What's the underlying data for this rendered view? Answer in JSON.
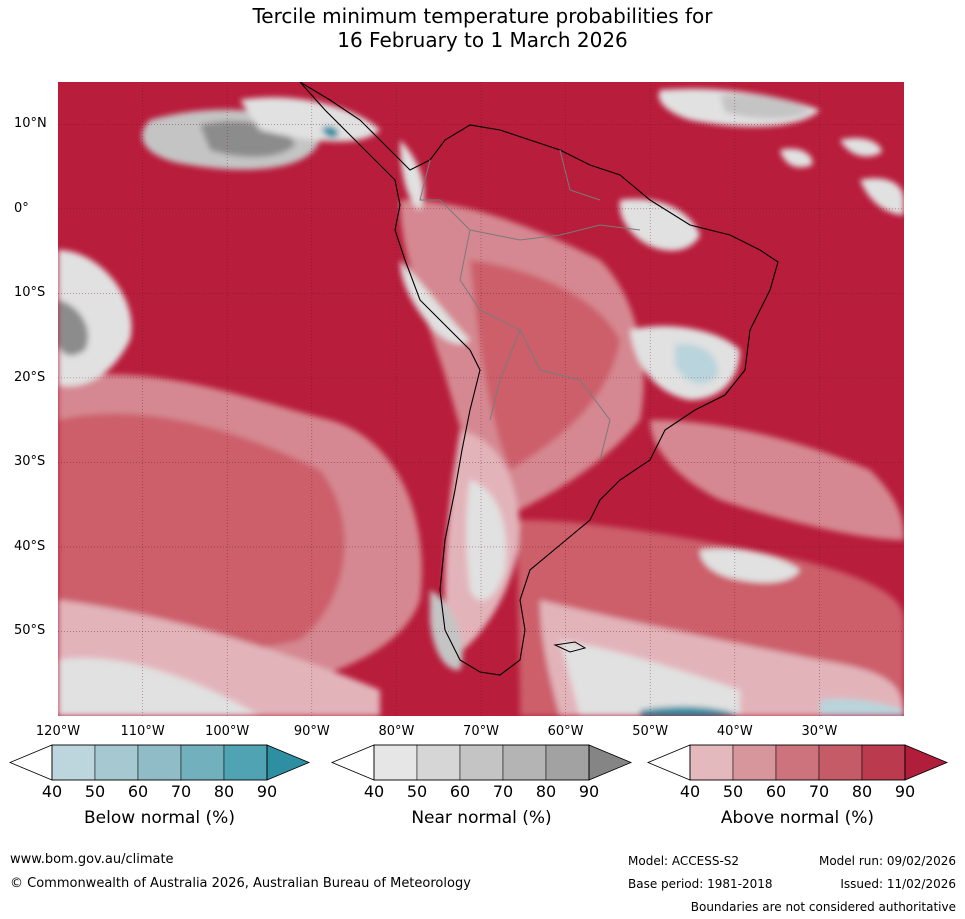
{
  "title": {
    "line1": "Tercile minimum temperature probabilities for",
    "line2": "16 February to 1 March 2026"
  },
  "map": {
    "lat_labels": [
      "10°N",
      "0°",
      "10°S",
      "20°S",
      "30°S",
      "40°S",
      "50°S"
    ],
    "lon_labels": [
      "120°W",
      "110°W",
      "100°W",
      "90°W",
      "80°W",
      "70°W",
      "60°W",
      "50°W",
      "40°W",
      "30°W"
    ],
    "colors": {
      "above_90": "#b81d3b",
      "above_80": "#c8384f",
      "above_70": "#cc5e6a",
      "above_60": "#d58891",
      "above_50": "#e2b4ba",
      "near_light": "#e1e1e1",
      "near_mid": "#c4c4c4",
      "near_dark": "#8c8c8c",
      "below_light": "#b9d4dc",
      "below_dark": "#2e8fa3"
    }
  },
  "colorbars": [
    {
      "title": "Below normal (%)",
      "ticks": [
        "40",
        "50",
        "60",
        "70",
        "80",
        "90"
      ],
      "colors": [
        "#ffffff",
        "#bdd5dc",
        "#a6c9d1",
        "#8fbcc7",
        "#72b0bd",
        "#4fa3b2",
        "#2e8fa3"
      ]
    },
    {
      "title": "Near normal (%)",
      "ticks": [
        "40",
        "50",
        "60",
        "70",
        "80",
        "90"
      ],
      "colors": [
        "#ffffff",
        "#e6e6e6",
        "#d6d6d6",
        "#c4c4c4",
        "#b4b4b4",
        "#a2a2a2",
        "#858585"
      ]
    },
    {
      "title": "Above normal (%)",
      "ticks": [
        "40",
        "50",
        "60",
        "70",
        "80",
        "90"
      ],
      "colors": [
        "#ffffff",
        "#e4b9be",
        "#d7959c",
        "#cd737e",
        "#c55b66",
        "#bb3a4d",
        "#b01e3c"
      ]
    }
  ],
  "footer": {
    "website": "www.bom.gov.au/climate",
    "copyright": "© Commonwealth of Australia 2026, Australian Bureau of Meteorology",
    "model": "Model: ACCESS-S2",
    "base_period": "Base period: 1981-2018",
    "model_run": "Model run: 09/02/2026",
    "issued": "Issued: 11/02/2026",
    "disclaimer": "Boundaries are not considered authoritative"
  }
}
